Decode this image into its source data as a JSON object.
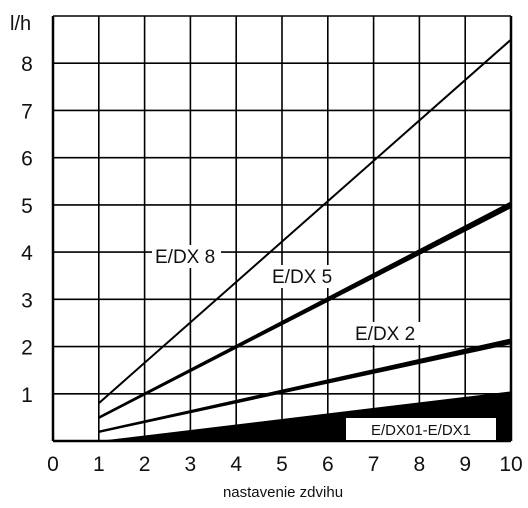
{
  "chart_data": {
    "type": "line",
    "ylabel": "l/h",
    "xlabel": "nastavenie zdvihu",
    "xlim": [
      0,
      10
    ],
    "ylim": [
      0,
      9
    ],
    "x_ticks": [
      "0",
      "1",
      "2",
      "3",
      "4",
      "5",
      "6",
      "7",
      "8",
      "9",
      "10"
    ],
    "y_ticks": [
      "1",
      "2",
      "3",
      "4",
      "5",
      "6",
      "7",
      "8"
    ],
    "grid": true,
    "series": [
      {
        "name": "E/DX 8",
        "x": [
          1,
          10
        ],
        "y": [
          0.8,
          8.5
        ],
        "band": 0
      },
      {
        "name": "E/DX 5",
        "x": [
          1,
          10
        ],
        "y": [
          0.5,
          5.05
        ],
        "band": 0.12
      },
      {
        "name": "E/DX 2",
        "x": [
          1,
          10
        ],
        "y": [
          0.2,
          2.15
        ],
        "band": 0.1
      },
      {
        "name": "E/DX01-E/DX1",
        "x": [
          1,
          10
        ],
        "y_low": [
          0,
          0
        ],
        "y_high": [
          0,
          1.05
        ],
        "fill": true
      }
    ]
  }
}
